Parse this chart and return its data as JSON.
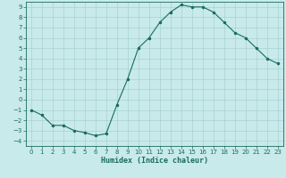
{
  "title": "",
  "xlabel": "Humidex (Indice chaleur)",
  "ylabel": "",
  "x_values": [
    0,
    1,
    2,
    3,
    4,
    5,
    6,
    7,
    8,
    9,
    10,
    11,
    12,
    13,
    14,
    15,
    16,
    17,
    18,
    19,
    20,
    21,
    22,
    23
  ],
  "y_values": [
    -1,
    -1.5,
    -2.5,
    -2.5,
    -3,
    -3.2,
    -3.5,
    -3.3,
    -0.5,
    2,
    5,
    6,
    7.5,
    8.5,
    9.2,
    9,
    9,
    8.5,
    7.5,
    6.5,
    6,
    5,
    4,
    3.5
  ],
  "ylim": [
    -4.5,
    9.5
  ],
  "xlim": [
    -0.5,
    23.5
  ],
  "yticks": [
    -4,
    -3,
    -2,
    -1,
    0,
    1,
    2,
    3,
    4,
    5,
    6,
    7,
    8,
    9
  ],
  "xticks": [
    0,
    1,
    2,
    3,
    4,
    5,
    6,
    7,
    8,
    9,
    10,
    11,
    12,
    13,
    14,
    15,
    16,
    17,
    18,
    19,
    20,
    21,
    22,
    23
  ],
  "line_color": "#1a6b5e",
  "marker_color": "#1a6b5e",
  "bg_color": "#c8eaea",
  "grid_color": "#a0cccc",
  "label_color": "#1a6b5e",
  "tick_color": "#1a6b5e"
}
